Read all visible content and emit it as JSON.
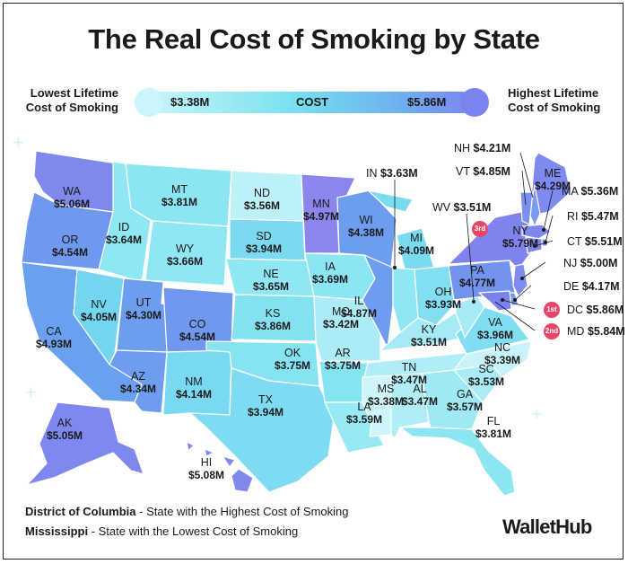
{
  "title": "The Real Cost of Smoking by State",
  "legend": {
    "left_label": "Lowest Lifetime Cost of Smoking",
    "right_label": "Highest Lifetime Cost of Smoking",
    "min": "$3.38M",
    "mid": "COST",
    "max": "$5.86M",
    "color_low": "#c8f5fa",
    "color_high": "#7a86f0"
  },
  "states": {
    "WA": {
      "abbr": "WA",
      "value": "$5.06M"
    },
    "OR": {
      "abbr": "OR",
      "value": "$4.54M"
    },
    "CA": {
      "abbr": "CA",
      "value": "$4.93M"
    },
    "NV": {
      "abbr": "NV",
      "value": "$4.05M"
    },
    "ID": {
      "abbr": "ID",
      "value": "$3.64M"
    },
    "MT": {
      "abbr": "MT",
      "value": "$3.81M"
    },
    "WY": {
      "abbr": "WY",
      "value": "$3.66M"
    },
    "UT": {
      "abbr": "UT",
      "value": "$4.30M"
    },
    "AZ": {
      "abbr": "AZ",
      "value": "$4.34M"
    },
    "CO": {
      "abbr": "CO",
      "value": "$4.54M"
    },
    "NM": {
      "abbr": "NM",
      "value": "$4.14M"
    },
    "ND": {
      "abbr": "ND",
      "value": "$3.56M"
    },
    "SD": {
      "abbr": "SD",
      "value": "$3.94M"
    },
    "NE": {
      "abbr": "NE",
      "value": "$3.65M"
    },
    "KS": {
      "abbr": "KS",
      "value": "$3.86M"
    },
    "OK": {
      "abbr": "OK",
      "value": "$3.75M"
    },
    "TX": {
      "abbr": "TX",
      "value": "$3.94M"
    },
    "MN": {
      "abbr": "MN",
      "value": "$4.97M"
    },
    "IA": {
      "abbr": "IA",
      "value": "$3.69M"
    },
    "MO": {
      "abbr": "MO",
      "value": "$3.42M"
    },
    "AR": {
      "abbr": "AR",
      "value": "$3.75M"
    },
    "LA": {
      "abbr": "LA",
      "value": "$3.59M"
    },
    "WI": {
      "abbr": "WI",
      "value": "$4.38M"
    },
    "IL": {
      "abbr": "IL",
      "value": "$4.87M"
    },
    "MI": {
      "abbr": "MI",
      "value": "$4.09M"
    },
    "IN": {
      "abbr": "IN",
      "value": "$3.63M"
    },
    "OH": {
      "abbr": "OH",
      "value": "$3.93M"
    },
    "KY": {
      "abbr": "KY",
      "value": "$3.51M"
    },
    "TN": {
      "abbr": "TN",
      "value": "$3.47M"
    },
    "MS": {
      "abbr": "MS",
      "value": "$3.38M"
    },
    "AL": {
      "abbr": "AL",
      "value": "$3.47M"
    },
    "GA": {
      "abbr": "GA",
      "value": "$3.57M"
    },
    "FL": {
      "abbr": "FL",
      "value": "$3.81M"
    },
    "SC": {
      "abbr": "SC",
      "value": "$3.53M"
    },
    "NC": {
      "abbr": "NC",
      "value": "$3.39M"
    },
    "VA": {
      "abbr": "VA",
      "value": "$3.96M"
    },
    "WV": {
      "abbr": "WV",
      "value": "$3.51M"
    },
    "PA": {
      "abbr": "PA",
      "value": "$4.77M"
    },
    "NY": {
      "abbr": "NY",
      "value": "$5.79M"
    },
    "ME": {
      "abbr": "ME",
      "value": "$4.29M"
    },
    "NH": {
      "abbr": "NH",
      "value": "$4.21M"
    },
    "VT": {
      "abbr": "VT",
      "value": "$4.85M"
    },
    "MA": {
      "abbr": "MA",
      "value": "$5.36M"
    },
    "RI": {
      "abbr": "RI",
      "value": "$5.47M"
    },
    "CT": {
      "abbr": "CT",
      "value": "$5.51M"
    },
    "NJ": {
      "abbr": "NJ",
      "value": "$5.00M"
    },
    "DE": {
      "abbr": "DE",
      "value": "$4.17M"
    },
    "DC": {
      "abbr": "DC",
      "value": "$5.86M"
    },
    "MD": {
      "abbr": "MD",
      "value": "$5.84M"
    },
    "AK": {
      "abbr": "AK",
      "value": "$5.05M"
    },
    "HI": {
      "abbr": "HI",
      "value": "$5.08M"
    }
  },
  "ranks": {
    "first": "1st",
    "second": "2nd",
    "third": "3rd"
  },
  "notes": {
    "highest_state": "District of Columbia",
    "highest_text": " - State with the Highest Cost of Smoking",
    "lowest_state": "Mississippi",
    "lowest_text": " - State with the Lowest Cost of Smoking"
  },
  "brand": "WalletHub"
}
